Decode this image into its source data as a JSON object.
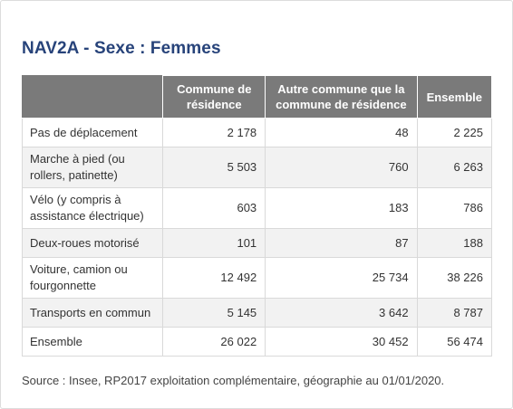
{
  "title": "NAV2A - Sexe : Femmes",
  "table": {
    "headers": [
      "",
      "Commune de résidence",
      "Autre commune que la commune de résidence",
      "Ensemble"
    ],
    "rows": [
      [
        "Pas de déplacement",
        "2 178",
        "48",
        "2 225"
      ],
      [
        "Marche à pied (ou rollers, patinette)",
        "5 503",
        "760",
        "6 263"
      ],
      [
        "Vélo (y compris à assistance électrique)",
        "603",
        "183",
        "786"
      ],
      [
        "Deux-roues motorisé",
        "101",
        "87",
        "188"
      ],
      [
        "Voiture, camion ou fourgonnette",
        "12 492",
        "25 734",
        "38 226"
      ],
      [
        "Transports en commun",
        "5 145",
        "3 642",
        "8 787"
      ],
      [
        "Ensemble",
        "26 022",
        "30 452",
        "56 474"
      ]
    ]
  },
  "source": "Source : Insee, RP2017 exploitation complémentaire, géographie au 01/01/2020."
}
